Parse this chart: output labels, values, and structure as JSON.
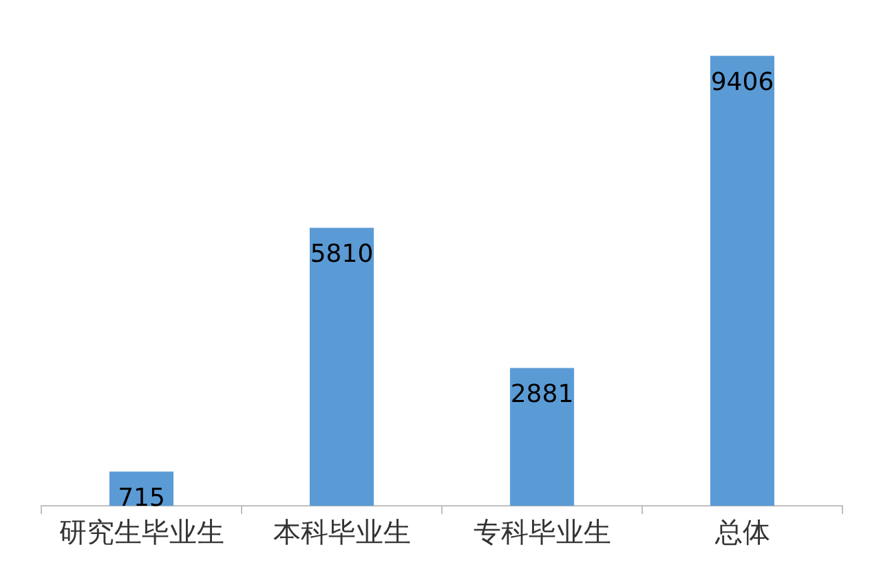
{
  "chart_data": {
    "type": "bar",
    "categories": [
      "研究生毕业生",
      "本科毕业生",
      "专科毕业生",
      "总体"
    ],
    "values": [
      715,
      5810,
      2881,
      9406
    ],
    "color": "#5b9bd5",
    "data_labels": true
  }
}
